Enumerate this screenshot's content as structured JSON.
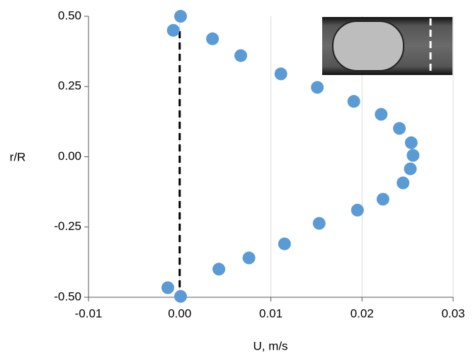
{
  "chart_data": {
    "type": "scatter",
    "x_label": "U, m/s",
    "y_label": "r/R",
    "series": [
      {
        "color": "#5b9bd5",
        "x": [
          0.0001,
          -0.0007,
          0.0036,
          0.0067,
          0.0111,
          0.0151,
          0.0191,
          0.0221,
          0.0241,
          0.0254,
          0.0256,
          0.0253,
          0.0245,
          0.0223,
          0.0195,
          0.0153,
          0.0115,
          0.0076,
          0.0043,
          -0.0013,
          0.0001
        ],
        "values": [
          0.5,
          0.45,
          0.42,
          0.36,
          0.295,
          0.247,
          0.197,
          0.151,
          0.101,
          0.05,
          0.005,
          -0.043,
          -0.093,
          -0.151,
          -0.19,
          -0.237,
          -0.31,
          -0.36,
          -0.4,
          -0.466,
          -0.497
        ]
      }
    ],
    "xlim": [
      -0.01,
      0.03
    ],
    "xticks": [
      -0.01,
      {
        "value": 0,
        "label": "0.00"
      },
      0.01,
      0.02,
      0.03
    ],
    "ylim": [
      -0.5,
      0.5
    ],
    "yticks": [
      {
        "value": 0.5,
        "label": "0.50"
      },
      0.25,
      {
        "value": 0,
        "label": "0.00"
      },
      -0.25,
      {
        "value": -0.5,
        "label": "-0.50"
      }
    ],
    "grid": "x"
  }
}
